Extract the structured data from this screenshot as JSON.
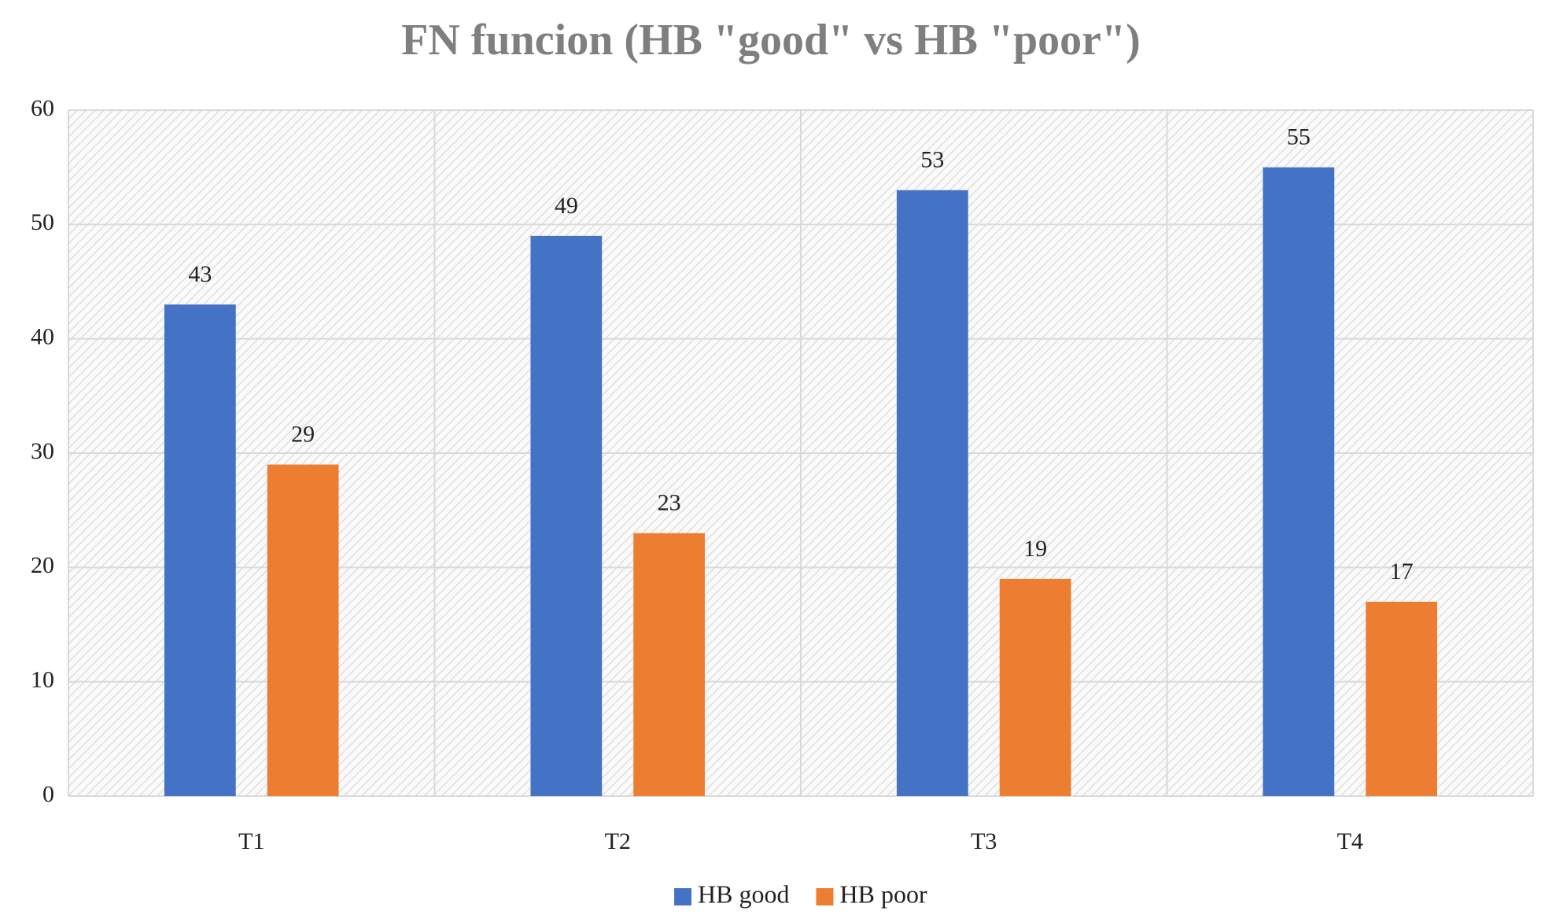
{
  "chart_data": {
    "type": "bar",
    "title": "FN funcion (HB \"good\" vs HB \"poor\")",
    "categories": [
      "T1",
      "T2",
      "T3",
      "T4"
    ],
    "series": [
      {
        "name": "HB good",
        "color": "#4472c4",
        "values": [
          43,
          49,
          53,
          55
        ]
      },
      {
        "name": "HB poor",
        "color": "#ed7d31",
        "values": [
          29,
          23,
          19,
          17
        ]
      }
    ],
    "ylim": [
      0,
      60
    ],
    "yticks": [
      0,
      10,
      20,
      30,
      40,
      50,
      60
    ],
    "grid": true,
    "legend": "bottom"
  }
}
